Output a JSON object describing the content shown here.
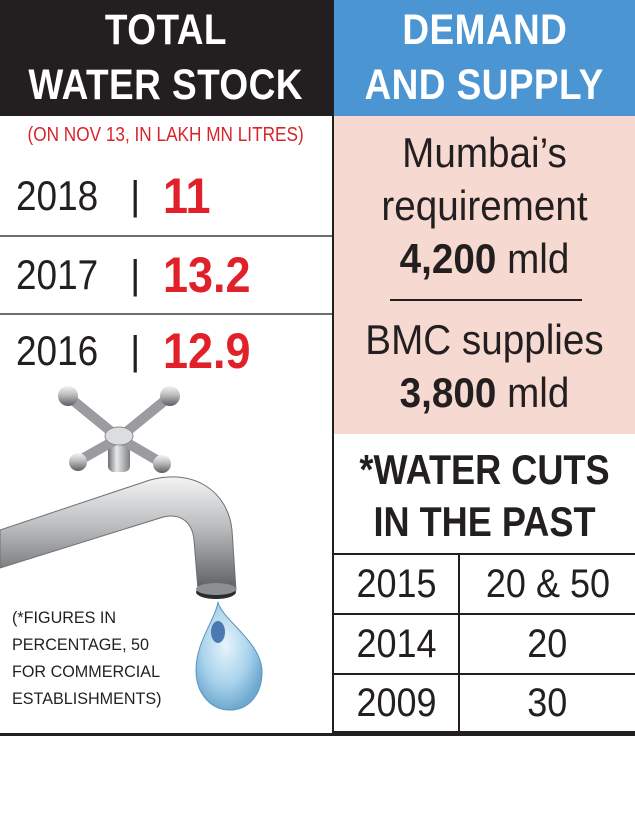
{
  "chart_data": [
    {
      "type": "table",
      "title": "TOTAL WATER STOCK",
      "subtitle": "(ON NOV 13, IN LAKH MN LITRES)",
      "categories": [
        "2018",
        "2017",
        "2016"
      ],
      "values": [
        11,
        13.2,
        12.9
      ],
      "value_labels": [
        "11",
        "13.2",
        "12.9"
      ],
      "separator": "|",
      "value_color": "#e0212a"
    },
    {
      "type": "table",
      "title": "DEMAND AND SUPPLY",
      "rows": [
        {
          "label_line1": "Mumbai’s",
          "label_line2": "requirement",
          "value": 4200,
          "value_label": "4,200",
          "unit": "mld"
        },
        {
          "label_line1": "BMC supplies",
          "value": 3800,
          "value_label": "3,800",
          "unit": "mld"
        }
      ]
    },
    {
      "type": "table",
      "title": "*WATER CUTS IN THE PAST",
      "categories": [
        "2015",
        "2014",
        "2009"
      ],
      "values": [
        "20 & 50",
        "20",
        "30"
      ]
    }
  ],
  "headers": {
    "left_line1": "TOTAL",
    "left_line2": "WATER STOCK",
    "right_line1": "DEMAND",
    "right_line2": "AND SUPPLY"
  },
  "cuts_title": {
    "line1": "*WATER CUTS",
    "line2": "IN THE PAST"
  },
  "footnote": {
    "line1": "(*FIGURES IN",
    "line2": "PERCENTAGE, 50",
    "line3": "FOR COMMERCIAL",
    "line4": "ESTABLISHMENTS)"
  },
  "icon": "water-tap-icon",
  "colors": {
    "header_dark": "#231f20",
    "header_blue": "#4b96d2",
    "demand_bg": "#f6d9d0",
    "accent_red": "#e0212a"
  }
}
